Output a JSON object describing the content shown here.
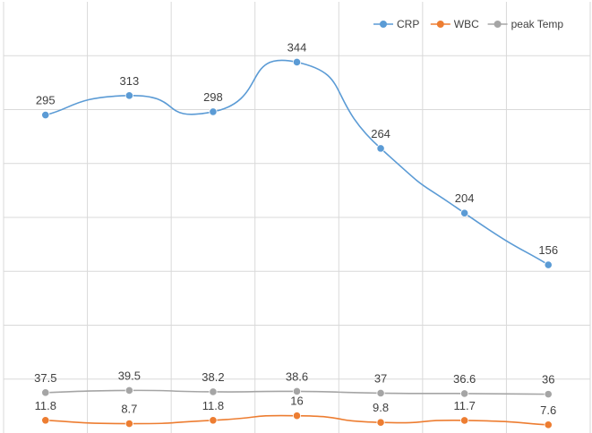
{
  "chart_data": {
    "type": "line",
    "categories": [
      "",
      "",
      "",
      "",
      "",
      "",
      ""
    ],
    "series": [
      {
        "name": "CRP",
        "color": "#5b9bd5",
        "values": [
          295,
          313,
          298,
          344,
          264,
          204,
          156
        ]
      },
      {
        "name": "WBC",
        "color": "#ed7d31",
        "values": [
          11.8,
          8.7,
          11.8,
          16,
          9.8,
          11.7,
          7.6
        ]
      },
      {
        "name": "peak Temp",
        "color": "#a5a5a5",
        "values": [
          37.5,
          39.5,
          38.2,
          38.6,
          37,
          36.6,
          36
        ]
      }
    ],
    "ylim": [
      0,
      400
    ],
    "grid": true,
    "legend": "top-right",
    "smooth": true
  }
}
